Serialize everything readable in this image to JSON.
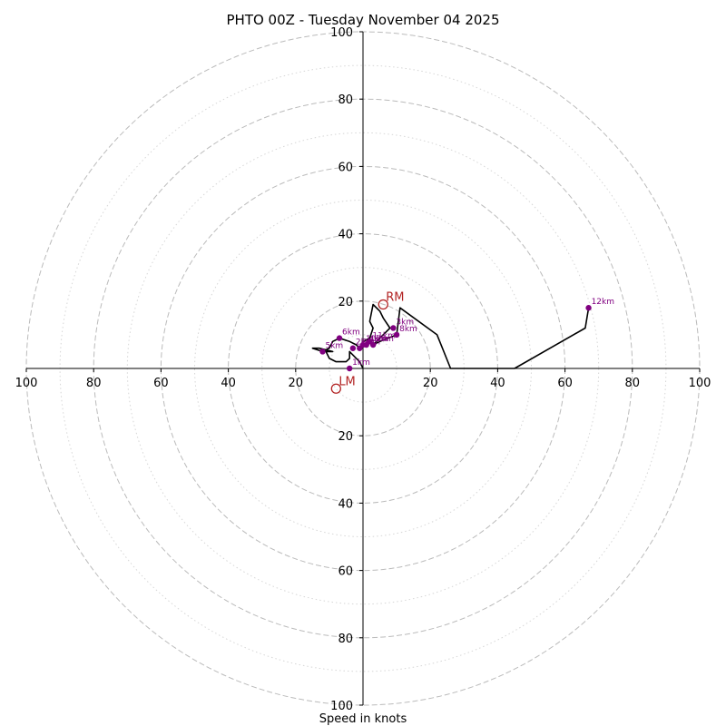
{
  "chart_data": {
    "type": "hodograph",
    "title": "PHTO 00Z - Tuesday November 04 2025",
    "xlabel": "Speed in knots",
    "range": [
      -100,
      100
    ],
    "tick_labels": [
      "100",
      "80",
      "60",
      "40",
      "20",
      "20",
      "40",
      "60",
      "80",
      "100"
    ],
    "tick_values": [
      -100,
      -80,
      -60,
      -40,
      -20,
      20,
      40,
      60,
      80,
      100
    ],
    "ring_major": [
      20,
      40,
      60,
      80,
      100
    ],
    "ring_minor": [
      10,
      30,
      50,
      70,
      90
    ],
    "hodograph_trace": [
      [
        0,
        0
      ],
      [
        -1,
        2
      ],
      [
        -2,
        3
      ],
      [
        -3,
        4
      ],
      [
        -4,
        5
      ],
      [
        -4,
        3
      ],
      [
        -5,
        2
      ],
      [
        -8,
        2
      ],
      [
        -10,
        3
      ],
      [
        -11,
        5
      ],
      [
        -9,
        5
      ],
      [
        -13,
        6
      ],
      [
        -15,
        6
      ],
      [
        -12,
        5
      ],
      [
        -10,
        6
      ],
      [
        -9,
        8
      ],
      [
        -7,
        9
      ],
      [
        -4,
        8
      ],
      [
        -2,
        7
      ],
      [
        -1,
        6
      ],
      [
        0,
        8
      ],
      [
        2,
        9
      ],
      [
        3,
        12
      ],
      [
        2,
        14
      ],
      [
        3,
        19
      ],
      [
        5,
        17
      ],
      [
        6,
        15
      ],
      [
        8,
        12
      ],
      [
        7,
        11
      ],
      [
        4,
        8
      ],
      [
        3,
        7
      ],
      [
        5,
        8
      ],
      [
        10,
        10
      ],
      [
        11,
        18
      ],
      [
        22,
        10
      ],
      [
        26,
        0
      ],
      [
        45,
        0
      ],
      [
        66,
        12
      ],
      [
        67,
        18
      ]
    ],
    "height_markers": [
      {
        "label": "1km",
        "x": -4,
        "y": 0
      },
      {
        "label": "2km",
        "x": -3,
        "y": 6
      },
      {
        "label": "3km",
        "x": 9,
        "y": 12
      },
      {
        "label": "4km",
        "x": 1,
        "y": 7
      },
      {
        "label": "5km",
        "x": -12,
        "y": 5
      },
      {
        "label": "6km",
        "x": -7,
        "y": 9
      },
      {
        "label": "7km",
        "x": 3,
        "y": 7
      },
      {
        "label": "8km",
        "x": 10,
        "y": 10
      },
      {
        "label": "9km",
        "x": -1,
        "y": 6
      },
      {
        "label": "10km",
        "x": 0,
        "y": 7
      },
      {
        "label": "11km",
        "x": 2,
        "y": 8
      },
      {
        "label": "12km",
        "x": 67,
        "y": 18
      }
    ],
    "storm_motions": [
      {
        "label": "RM",
        "x": 6,
        "y": 19
      },
      {
        "label": "LM",
        "x": -8,
        "y": -6
      }
    ],
    "colors": {
      "trace": "#000000",
      "marker": "#800080",
      "storm_motion": "#b22222",
      "rings": "#bbbbbb",
      "axes": "#000000"
    }
  }
}
